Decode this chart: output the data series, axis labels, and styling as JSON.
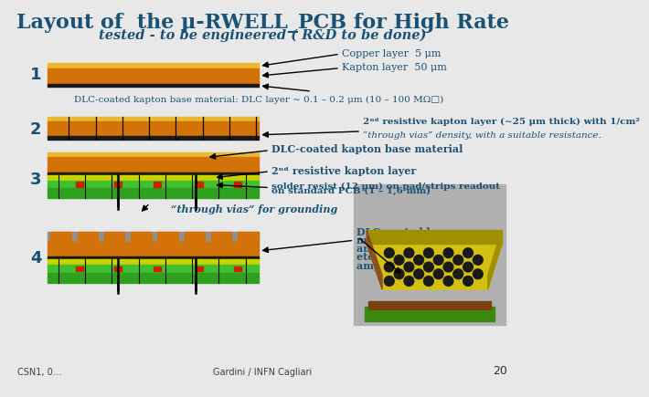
{
  "title": "Layout of  the μ-RWELL_PCB for High Rate",
  "subtitle": "tested - to be engineered ( R&D to be done)",
  "bg_color": "#e8e8e8",
  "title_color": "#1a5276",
  "text_color": "#1a5276",
  "copper_color": "#e8b830",
  "kapton_color": "#d4720a",
  "dlc_color": "#1a1a1a",
  "yellow_green": "#c8d400",
  "bright_green": "#40c030",
  "mid_green": "#30a020",
  "dark_green": "#208010",
  "gray_color": "#909090",
  "red_square_color": "#cc2200",
  "label1": "Copper layer  5 μm",
  "label2": "Kapton layer  50 μm",
  "label3": "DLC-coated kapton base material: DLC layer ∼ 0.1 – 0.2 μm (10 – 100 MΩ□)",
  "label4_line1": "2ⁿᵈ resistive kapton layer (∼25 μm thick) with 1/cm²",
  "label4_line2": "“through vias” density, with a suitable resistance.",
  "label5": "DLC-coated kapton base material",
  "label6": "2ⁿᵈ resistive kapton layer",
  "label7_line1": "solder resist (12 μm) on pad/strips readout",
  "label7_line2": "on standard PCB (1 – 1,6 mm)",
  "label8": "“through vias” for grounding",
  "label9_line1": "DLC-coated base",
  "label9_line2": "material after copper",
  "label9_line3": "and kapton chemical",
  "label9_line4": "etching (the WELL",
  "label9_line5": "amplification stage)",
  "footer": "CSN1, 0…",
  "footer2": "Gardini / INFN Cagliari",
  "page_num": "20"
}
